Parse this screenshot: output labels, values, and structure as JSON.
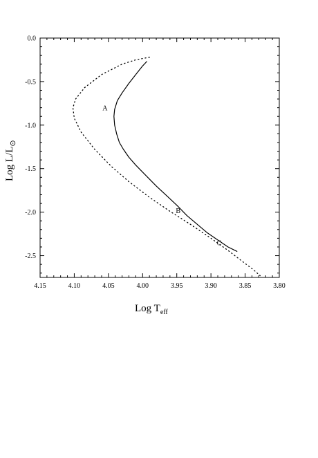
{
  "chart_data": {
    "type": "line",
    "xlabel": "Log T",
    "xlabel_sub": "eff",
    "ylabel": "Log L/L",
    "ylabel_sub": "⊙",
    "xlim": [
      4.15,
      3.8
    ],
    "ylim": [
      -2.75,
      0.0
    ],
    "x_ticks": [
      "4.15",
      "4.10",
      "4.05",
      "4.00",
      "3.95",
      "3.90",
      "3.85",
      "3.80"
    ],
    "y_ticks": [
      "0.0",
      "-0.5",
      "-1.0",
      "-1.5",
      "-2.0",
      "-2.5"
    ],
    "series": [
      {
        "style": "solid",
        "x": [
          3.994,
          4.0,
          4.01,
          4.02,
          4.03,
          4.037,
          4.041,
          4.042,
          4.041,
          4.038,
          4.034,
          4.028,
          4.02,
          4.01,
          3.995,
          3.98,
          3.965,
          3.95,
          3.935,
          3.92,
          3.905,
          3.89,
          3.875,
          3.862
        ],
        "y": [
          -0.27,
          -0.32,
          -0.42,
          -0.52,
          -0.63,
          -0.72,
          -0.82,
          -0.9,
          -1.0,
          -1.1,
          -1.2,
          -1.28,
          -1.37,
          -1.46,
          -1.58,
          -1.7,
          -1.81,
          -1.92,
          -2.04,
          -2.14,
          -2.24,
          -2.32,
          -2.4,
          -2.45
        ]
      },
      {
        "style": "dotted",
        "x": [
          3.99,
          4.01,
          4.03,
          4.06,
          4.085,
          4.098,
          4.102,
          4.1,
          4.09,
          4.07,
          4.045,
          4.02,
          3.99,
          3.96,
          3.93,
          3.9,
          3.875,
          3.855,
          3.838,
          3.828
        ],
        "y": [
          -0.22,
          -0.25,
          -0.3,
          -0.42,
          -0.57,
          -0.7,
          -0.8,
          -0.92,
          -1.08,
          -1.28,
          -1.48,
          -1.65,
          -1.83,
          -1.99,
          -2.14,
          -2.3,
          -2.44,
          -2.56,
          -2.66,
          -2.73
        ]
      }
    ],
    "annotations": [
      {
        "text": "A",
        "x": 4.055,
        "y": -0.8
      },
      {
        "text": "B",
        "x": 3.948,
        "y": -1.98
      },
      {
        "text": "C",
        "x": 3.888,
        "y": -2.35
      }
    ],
    "grid": false
  }
}
